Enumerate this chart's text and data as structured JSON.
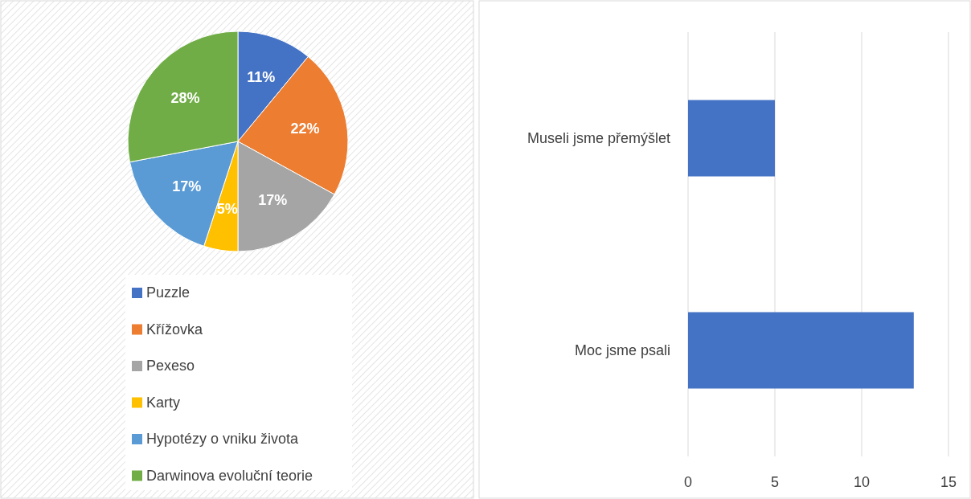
{
  "chart_data": [
    {
      "type": "pie",
      "categories": [
        "Puzzle",
        "Křížovka",
        "Pexeso",
        "Karty",
        "Hypotézy o vniku života",
        "Darwinova evoluční teorie"
      ],
      "values": [
        11,
        22,
        17,
        5,
        17,
        28
      ],
      "colors": [
        "#4472c4",
        "#ed7d31",
        "#a5a5a5",
        "#ffc000",
        "#5b9bd5",
        "#70ad47"
      ],
      "value_labels": [
        "11%",
        "22%",
        "17%",
        "5%",
        "17%",
        "28%"
      ],
      "legend": "bottom"
    },
    {
      "type": "bar",
      "orientation": "horizontal",
      "categories": [
        "Museli jsme přemýšlet",
        "Moc jsme psali"
      ],
      "values": [
        5,
        13
      ],
      "color": "#4472c4",
      "xlim": [
        0,
        15
      ],
      "xticks": [
        0,
        5,
        10,
        15
      ],
      "grid": "x"
    }
  ]
}
